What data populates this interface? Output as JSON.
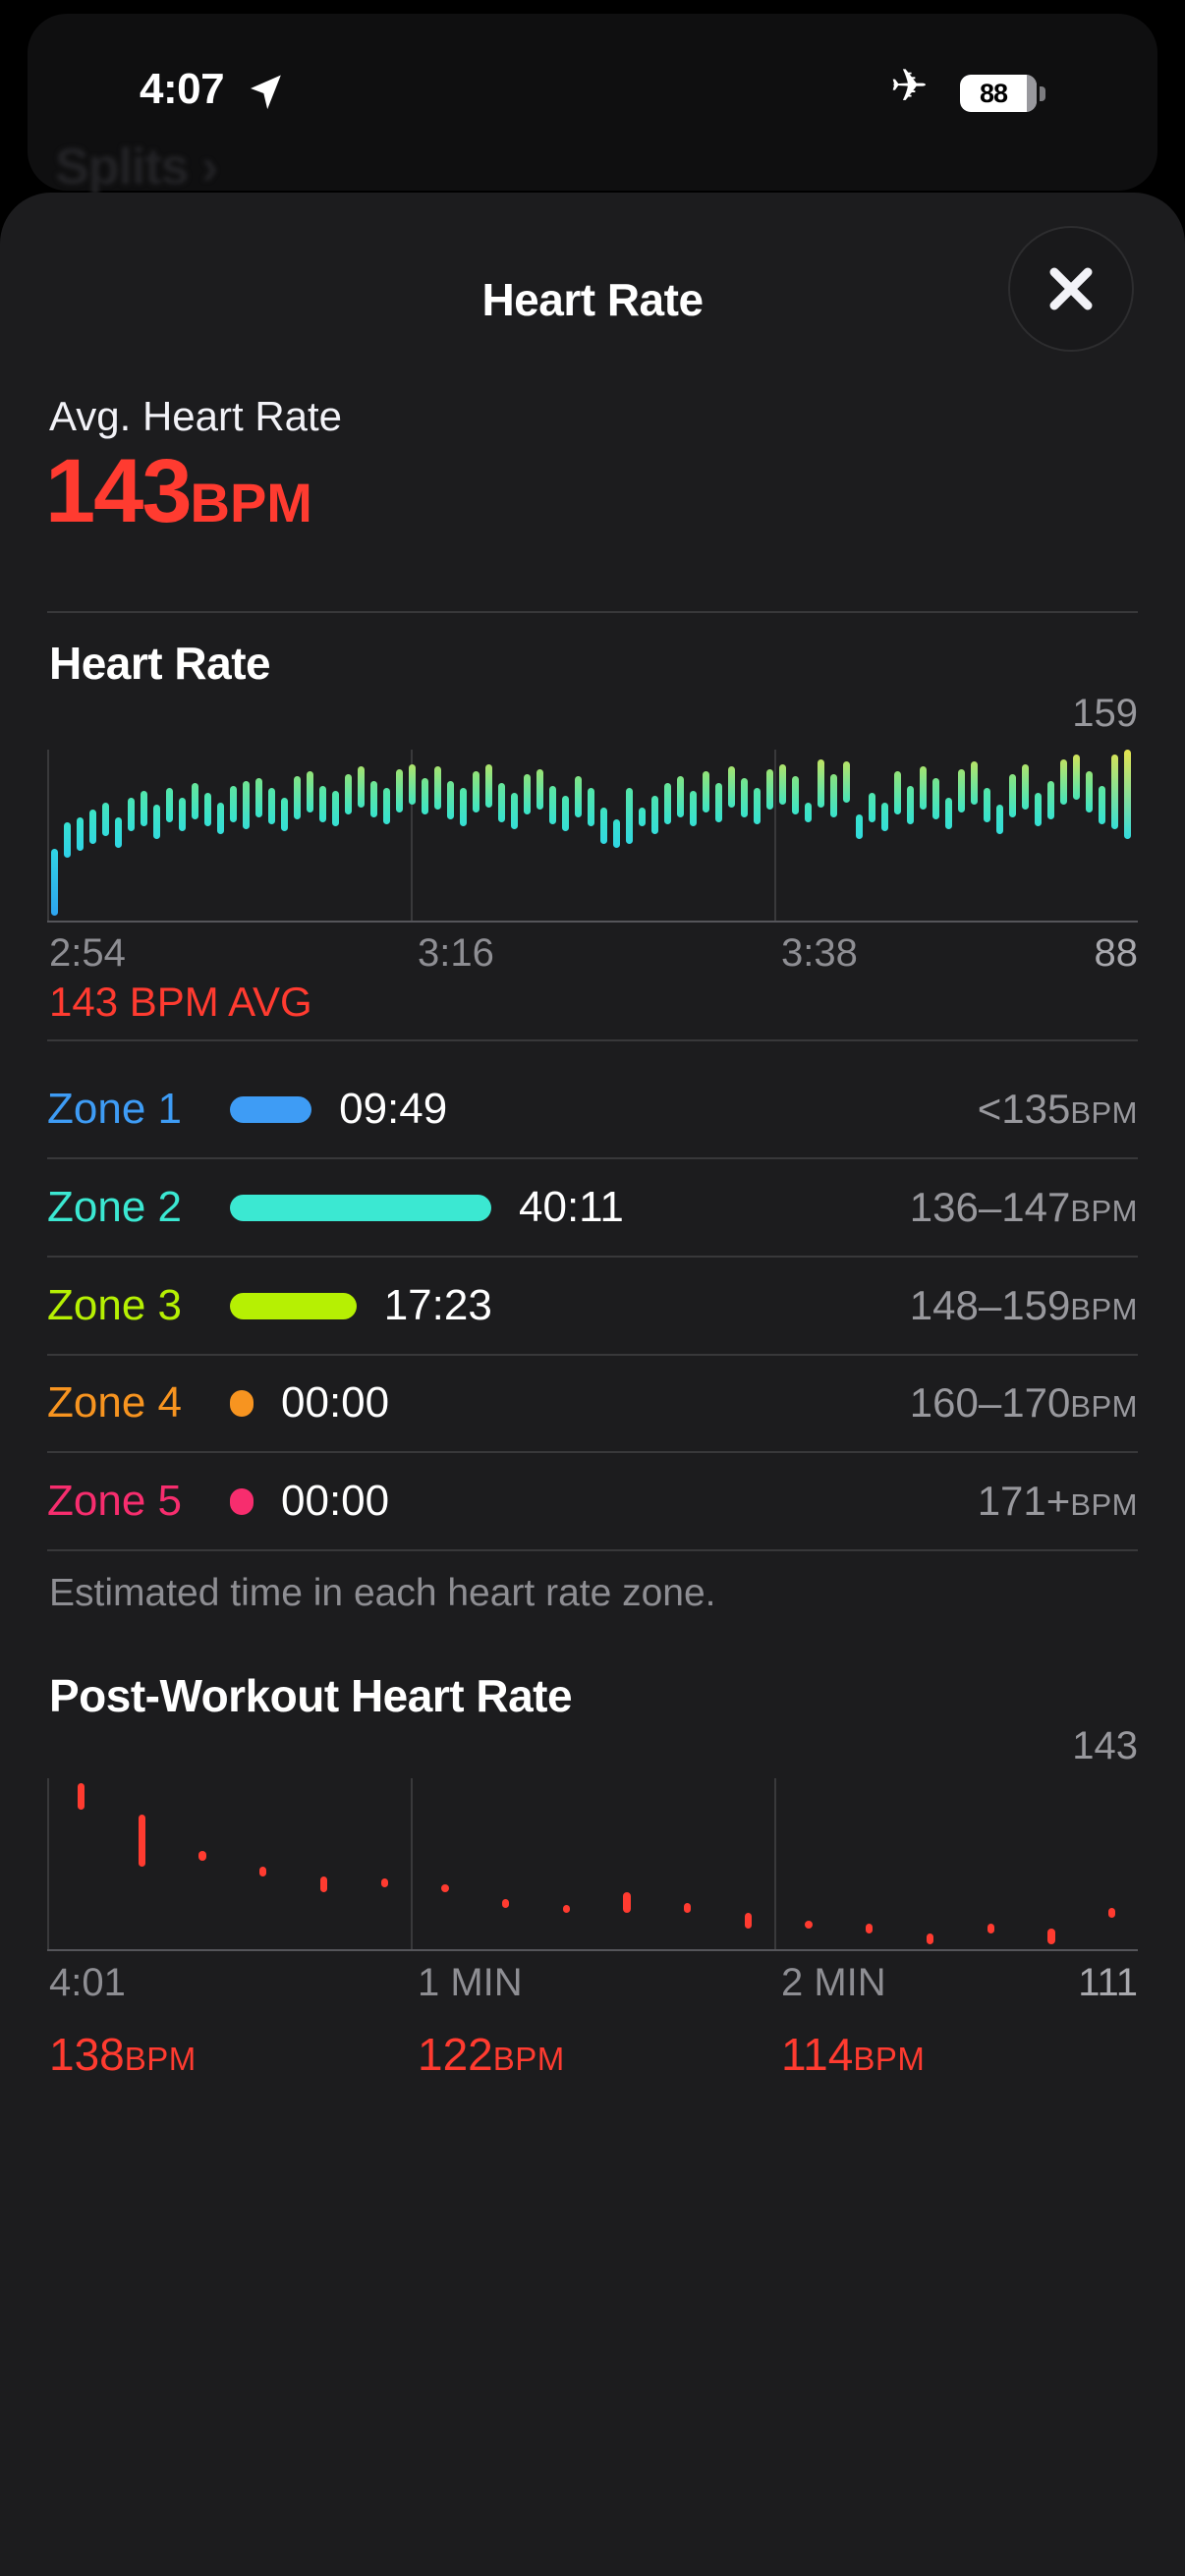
{
  "colors": {
    "accent_red": "#FF3B30",
    "sheet_bg": "#1C1C1E",
    "bar_gradient_low": "#2E9FEF",
    "bar_gradient_high": "#E6E44E"
  },
  "status_bar": {
    "time": "4:07",
    "battery_level": "88"
  },
  "background": {
    "dimmed_nav_label": "Splits ›"
  },
  "sheet": {
    "title": "Heart Rate",
    "avg": {
      "label": "Avg. Heart Rate",
      "value": "143",
      "unit": "BPM"
    },
    "zones": {
      "rows": [
        {
          "label": "Zone 1",
          "duration": "09:49",
          "duration_seconds": 589,
          "range": "<135",
          "unit": "BPM",
          "color": "#3E9CF5"
        },
        {
          "label": "Zone 2",
          "duration": "40:11",
          "duration_seconds": 2411,
          "range": "136–147",
          "unit": "BPM",
          "color": "#3BE8D2"
        },
        {
          "label": "Zone 3",
          "duration": "17:23",
          "duration_seconds": 1043,
          "range": "148–159",
          "unit": "BPM",
          "color": "#B6F003"
        },
        {
          "label": "Zone 4",
          "duration": "00:00",
          "duration_seconds": 0,
          "range": "160–170",
          "unit": "BPM",
          "color": "#F79420"
        },
        {
          "label": "Zone 5",
          "duration": "00:00",
          "duration_seconds": 0,
          "range": "171+",
          "unit": "BPM",
          "color": "#F72D6E"
        }
      ],
      "caption": "Estimated time in each heart rate zone."
    }
  },
  "chart_data": [
    {
      "type": "bar",
      "title": "Heart Rate",
      "ylabel": "BPM",
      "ylim": [
        88,
        159
      ],
      "axis_max_label": "159",
      "axis_min_label": "88",
      "x_ticks": [
        "2:54",
        "3:16",
        "3:38"
      ],
      "avg_annotation": "143 BPM AVG",
      "grid": "vertical-thirds",
      "gradient_stops": [
        [
          88,
          "#2E9FEF"
        ],
        [
          116,
          "#2FD4E8"
        ],
        [
          132,
          "#38E4CB"
        ],
        [
          143,
          "#55E6A7"
        ],
        [
          150,
          "#93E377"
        ],
        [
          156,
          "#C8E35F"
        ],
        [
          159,
          "#E6E44E"
        ]
      ],
      "bars": [
        [
          90,
          118
        ],
        [
          114,
          129
        ],
        [
          117,
          131
        ],
        [
          120,
          134
        ],
        [
          123,
          137
        ],
        [
          118,
          131
        ],
        [
          125,
          139
        ],
        [
          127,
          142
        ],
        [
          122,
          136
        ],
        [
          129,
          143
        ],
        [
          125,
          139
        ],
        [
          130,
          145
        ],
        [
          127,
          141
        ],
        [
          124,
          137
        ],
        [
          129,
          144
        ],
        [
          126,
          146
        ],
        [
          131,
          147
        ],
        [
          128,
          143
        ],
        [
          125,
          139
        ],
        [
          130,
          148
        ],
        [
          133,
          150
        ],
        [
          129,
          144
        ],
        [
          127,
          142
        ],
        [
          132,
          149
        ],
        [
          135,
          152
        ],
        [
          131,
          146
        ],
        [
          128,
          143
        ],
        [
          133,
          151
        ],
        [
          136,
          153
        ],
        [
          132,
          147
        ],
        [
          134,
          152
        ],
        [
          130,
          146
        ],
        [
          127,
          143
        ],
        [
          133,
          150
        ],
        [
          135,
          153
        ],
        [
          129,
          145
        ],
        [
          126,
          141
        ],
        [
          132,
          149
        ],
        [
          134,
          151
        ],
        [
          128,
          144
        ],
        [
          125,
          140
        ],
        [
          131,
          148
        ],
        [
          127,
          143
        ],
        [
          120,
          135
        ],
        [
          118,
          130
        ],
        [
          120,
          143
        ],
        [
          127,
          135
        ],
        [
          124,
          140
        ],
        [
          128,
          145
        ],
        [
          131,
          148
        ],
        [
          127,
          142
        ],
        [
          133,
          150
        ],
        [
          129,
          145
        ],
        [
          135,
          152
        ],
        [
          131,
          147
        ],
        [
          128,
          143
        ],
        [
          134,
          151
        ],
        [
          136,
          153
        ],
        [
          132,
          148
        ],
        [
          129,
          137
        ],
        [
          135,
          155
        ],
        [
          131,
          149
        ],
        [
          137,
          154
        ],
        [
          122,
          132
        ],
        [
          129,
          141
        ],
        [
          125,
          137
        ],
        [
          132,
          150
        ],
        [
          128,
          144
        ],
        [
          134,
          152
        ],
        [
          130,
          147
        ],
        [
          126,
          139
        ],
        [
          133,
          151
        ],
        [
          136,
          154
        ],
        [
          129,
          143
        ],
        [
          124,
          136
        ],
        [
          131,
          149
        ],
        [
          134,
          153
        ],
        [
          127,
          141
        ],
        [
          130,
          146
        ],
        [
          136,
          155
        ],
        [
          138,
          157
        ],
        [
          133,
          150
        ],
        [
          128,
          144
        ],
        [
          126,
          157
        ],
        [
          122,
          159
        ]
      ]
    },
    {
      "type": "bar",
      "title": "Post-Workout Heart Rate",
      "ylabel": "BPM",
      "ylim": [
        110,
        143
      ],
      "axis_max_label": "143",
      "axis_min_label": "111",
      "x_ticks": [
        "4:01",
        "1 MIN",
        "2 MIN"
      ],
      "bar_color": "#FF3B30",
      "grid": "vertical-thirds",
      "tick_annotations": [
        {
          "value": "138",
          "unit": "BPM"
        },
        {
          "value": "122",
          "unit": "BPM"
        },
        {
          "value": "114",
          "unit": "BPM"
        }
      ],
      "bars": [
        [
          137,
          142
        ],
        [
          126,
          136
        ],
        [
          127,
          129
        ],
        [
          124,
          126
        ],
        [
          121,
          124
        ],
        [
          122,
          123
        ],
        [
          121,
          122
        ],
        [
          118,
          119
        ],
        [
          117,
          118
        ],
        [
          117,
          121
        ],
        [
          117,
          119
        ],
        [
          114,
          117
        ],
        [
          114,
          115
        ],
        [
          113,
          115
        ],
        [
          111,
          113
        ],
        [
          113,
          115
        ],
        [
          111,
          114
        ],
        [
          116,
          118
        ]
      ]
    }
  ]
}
